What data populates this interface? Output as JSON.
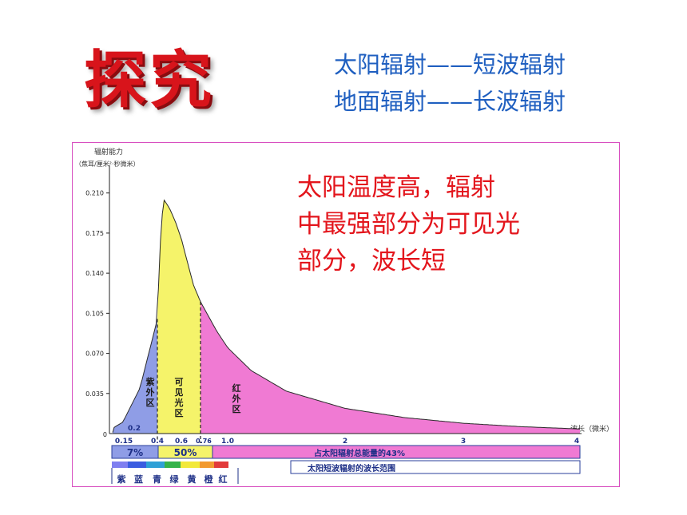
{
  "page": {
    "title": "探究",
    "subtitle_lines": [
      "太阳辐射——短波辐射",
      "地面辐射——长波辐射"
    ],
    "callout_lines": [
      "太阳温度高，辐射",
      "中最强部分为可见光",
      "部分，波长短"
    ]
  },
  "chart_data": {
    "type": "area",
    "ylabel": "辐射能力",
    "ylabel_unit": "（焦耳/厘米²·秒微米）",
    "xlabel": "波长（微米）",
    "ylim": [
      0,
      0.23
    ],
    "xlim": [
      0,
      4
    ],
    "yticks": [
      "0.035",
      "0.070",
      "0.105",
      "0.140",
      "0.175",
      "0.210"
    ],
    "xticks_main": [
      "0.2",
      "0.15",
      "0.4",
      "0.6",
      "0.76",
      "1.0",
      "2",
      "3",
      "4"
    ],
    "x": [
      0.1,
      0.2,
      0.3,
      0.35,
      0.4,
      0.42,
      0.45,
      0.48,
      0.5,
      0.55,
      0.6,
      0.65,
      0.7,
      0.76,
      0.9,
      1.0,
      1.2,
      1.5,
      2.0,
      2.5,
      3.0,
      3.5,
      4.0
    ],
    "y": [
      0.001,
      0.01,
      0.04,
      0.07,
      0.1,
      0.16,
      0.205,
      0.2,
      0.197,
      0.185,
      0.17,
      0.15,
      0.13,
      0.115,
      0.09,
      0.075,
      0.055,
      0.037,
      0.022,
      0.014,
      0.009,
      0.006,
      0.004
    ],
    "regions": [
      {
        "name": "紫外区",
        "from": 0.15,
        "to": 0.4,
        "color": "#8f9de6"
      },
      {
        "name": "可见光区",
        "from": 0.4,
        "to": 0.76,
        "color": "#f5f36a"
      },
      {
        "name": "红外区",
        "from": 0.76,
        "to": 4.0,
        "color": "#f07ad3"
      }
    ],
    "annotation_bars": [
      {
        "label": "7%"
      },
      {
        "label": "50%"
      },
      {
        "label": "占太阳辐射总能量的43%"
      }
    ],
    "short_wave_range_label": "太阳短波辐射的波长范围",
    "spectrum_legend": [
      {
        "label": "紫",
        "color": "#7f7ff0"
      },
      {
        "label": "蓝",
        "color": "#3b5de0"
      },
      {
        "label": "青",
        "color": "#2fa0d6"
      },
      {
        "label": "绿",
        "color": "#34b34a"
      },
      {
        "label": "黄",
        "color": "#f2e93a"
      },
      {
        "label": "橙",
        "color": "#f29a2e"
      },
      {
        "label": "红",
        "color": "#e23a3a"
      }
    ]
  }
}
